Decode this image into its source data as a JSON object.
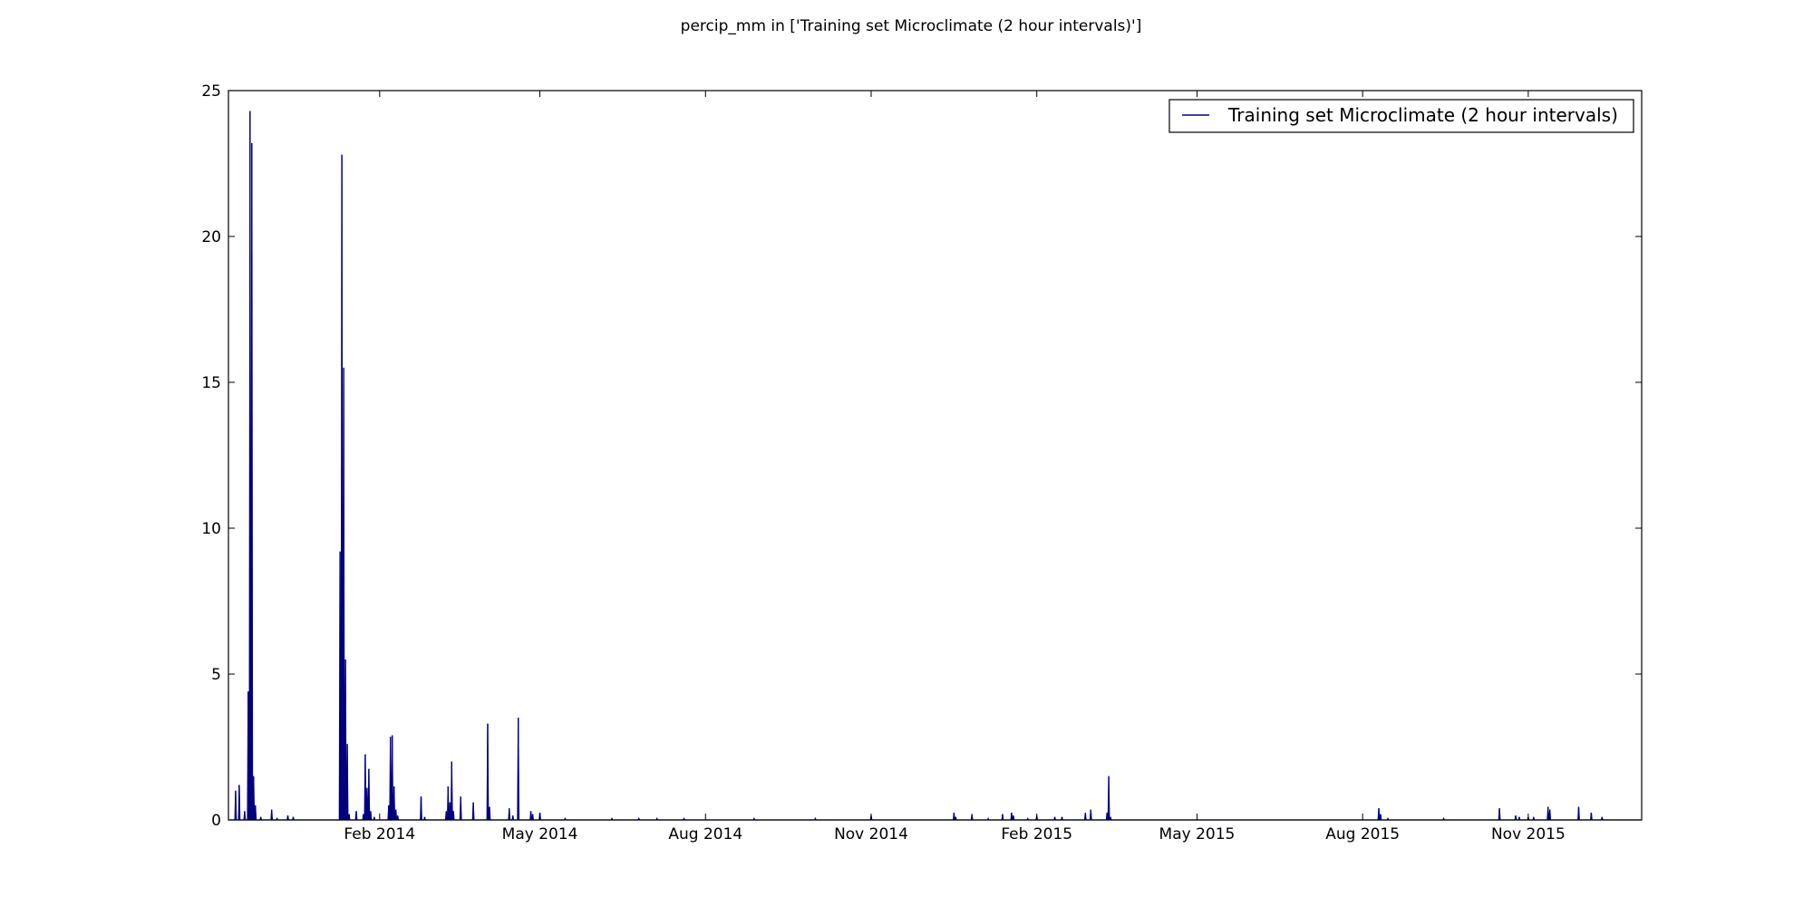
{
  "chart_data": {
    "type": "line",
    "title": "percip_mm in ['Training set Microclimate (2 hour intervals)']",
    "xlabel": "",
    "ylabel": "",
    "xlim": [
      "2013-11-09",
      "2016-01-03"
    ],
    "ylim": [
      0,
      25
    ],
    "y_ticks": [
      0,
      5,
      10,
      15,
      20,
      25
    ],
    "x_ticks": [
      {
        "date": "2014-02-01",
        "label": "Feb 2014"
      },
      {
        "date": "2014-05-01",
        "label": "May 2014"
      },
      {
        "date": "2014-08-01",
        "label": "Aug 2014"
      },
      {
        "date": "2014-11-01",
        "label": "Nov 2014"
      },
      {
        "date": "2015-02-01",
        "label": "Feb 2015"
      },
      {
        "date": "2015-05-01",
        "label": "May 2015"
      },
      {
        "date": "2015-08-01",
        "label": "Aug 2015"
      },
      {
        "date": "2015-11-01",
        "label": "Nov 2015"
      }
    ],
    "grid": false,
    "legend": {
      "position": "top-right",
      "entries": [
        "Training set Microclimate (2 hour intervals)"
      ]
    },
    "series": [
      {
        "name": "Training set Microclimate (2 hour intervals)",
        "color": "#000080",
        "points": [
          [
            "2013-11-13",
            1.0
          ],
          [
            "2013-11-15",
            1.2
          ],
          [
            "2013-11-18",
            0.3
          ],
          [
            "2013-11-20",
            4.4
          ],
          [
            "2013-11-21",
            24.3
          ],
          [
            "2013-11-21",
            17.9
          ],
          [
            "2013-11-22",
            23.2
          ],
          [
            "2013-11-22",
            19.5
          ],
          [
            "2013-11-23",
            1.5
          ],
          [
            "2013-11-24",
            0.5
          ],
          [
            "2013-11-27",
            0.1
          ],
          [
            "2013-12-03",
            0.35
          ],
          [
            "2013-12-06",
            0.05
          ],
          [
            "2013-12-12",
            0.15
          ],
          [
            "2013-12-15",
            0.1
          ],
          [
            "2014-01-10",
            9.2
          ],
          [
            "2014-01-11",
            22.8
          ],
          [
            "2014-01-12",
            15.5
          ],
          [
            "2014-01-13",
            5.5
          ],
          [
            "2014-01-14",
            2.6
          ],
          [
            "2014-01-15",
            0.2
          ],
          [
            "2014-01-19",
            0.3
          ],
          [
            "2014-01-23",
            0.2
          ],
          [
            "2014-01-24",
            2.25
          ],
          [
            "2014-01-25",
            1.1
          ],
          [
            "2014-01-26",
            1.75
          ],
          [
            "2014-01-27",
            0.3
          ],
          [
            "2014-01-29",
            0.1
          ],
          [
            "2014-02-06",
            0.5
          ],
          [
            "2014-02-07",
            2.85
          ],
          [
            "2014-02-08",
            2.9
          ],
          [
            "2014-02-09",
            1.15
          ],
          [
            "2014-02-10",
            0.35
          ],
          [
            "2014-02-11",
            0.15
          ],
          [
            "2014-02-24",
            0.8
          ],
          [
            "2014-02-26",
            0.1
          ],
          [
            "2014-03-10",
            0.3
          ],
          [
            "2014-03-11",
            1.15
          ],
          [
            "2014-03-12",
            0.6
          ],
          [
            "2014-03-13",
            2.0
          ],
          [
            "2014-03-14",
            0.3
          ],
          [
            "2014-03-18",
            0.8
          ],
          [
            "2014-03-25",
            0.6
          ],
          [
            "2014-04-02",
            3.3
          ],
          [
            "2014-04-03",
            0.45
          ],
          [
            "2014-04-14",
            0.4
          ],
          [
            "2014-04-16",
            0.15
          ],
          [
            "2014-04-19",
            3.5
          ],
          [
            "2014-04-26",
            0.3
          ],
          [
            "2014-04-27",
            0.2
          ],
          [
            "2014-05-01",
            0.25
          ],
          [
            "2014-05-15",
            0.05
          ],
          [
            "2014-06-10",
            0.05
          ],
          [
            "2014-06-25",
            0.05
          ],
          [
            "2014-07-05",
            0.05
          ],
          [
            "2014-07-20",
            0.05
          ],
          [
            "2014-08-28",
            0.05
          ],
          [
            "2014-10-01",
            0.05
          ],
          [
            "2014-11-01",
            0.15
          ],
          [
            "2014-12-17",
            0.25
          ],
          [
            "2014-12-18",
            0.1
          ],
          [
            "2014-12-27",
            0.2
          ],
          [
            "2015-01-05",
            0.05
          ],
          [
            "2015-01-13",
            0.2
          ],
          [
            "2015-01-18",
            0.25
          ],
          [
            "2015-01-19",
            0.15
          ],
          [
            "2015-01-27",
            0.05
          ],
          [
            "2015-02-01",
            0.15
          ],
          [
            "2015-02-11",
            0.1
          ],
          [
            "2015-02-15",
            0.1
          ],
          [
            "2015-02-28",
            0.25
          ],
          [
            "2015-03-03",
            0.35
          ],
          [
            "2015-03-12",
            0.25
          ],
          [
            "2015-03-13",
            1.5
          ],
          [
            "2015-03-14",
            0.1
          ],
          [
            "2015-08-10",
            0.4
          ],
          [
            "2015-08-11",
            0.2
          ],
          [
            "2015-08-15",
            0.05
          ],
          [
            "2015-09-15",
            0.05
          ],
          [
            "2015-10-16",
            0.4
          ],
          [
            "2015-10-25",
            0.15
          ],
          [
            "2015-10-27",
            0.1
          ],
          [
            "2015-11-01",
            0.1
          ],
          [
            "2015-11-04",
            0.1
          ],
          [
            "2015-11-12",
            0.45
          ],
          [
            "2015-11-13",
            0.35
          ],
          [
            "2015-11-29",
            0.45
          ],
          [
            "2015-12-06",
            0.25
          ],
          [
            "2015-12-12",
            0.1
          ]
        ]
      }
    ]
  }
}
